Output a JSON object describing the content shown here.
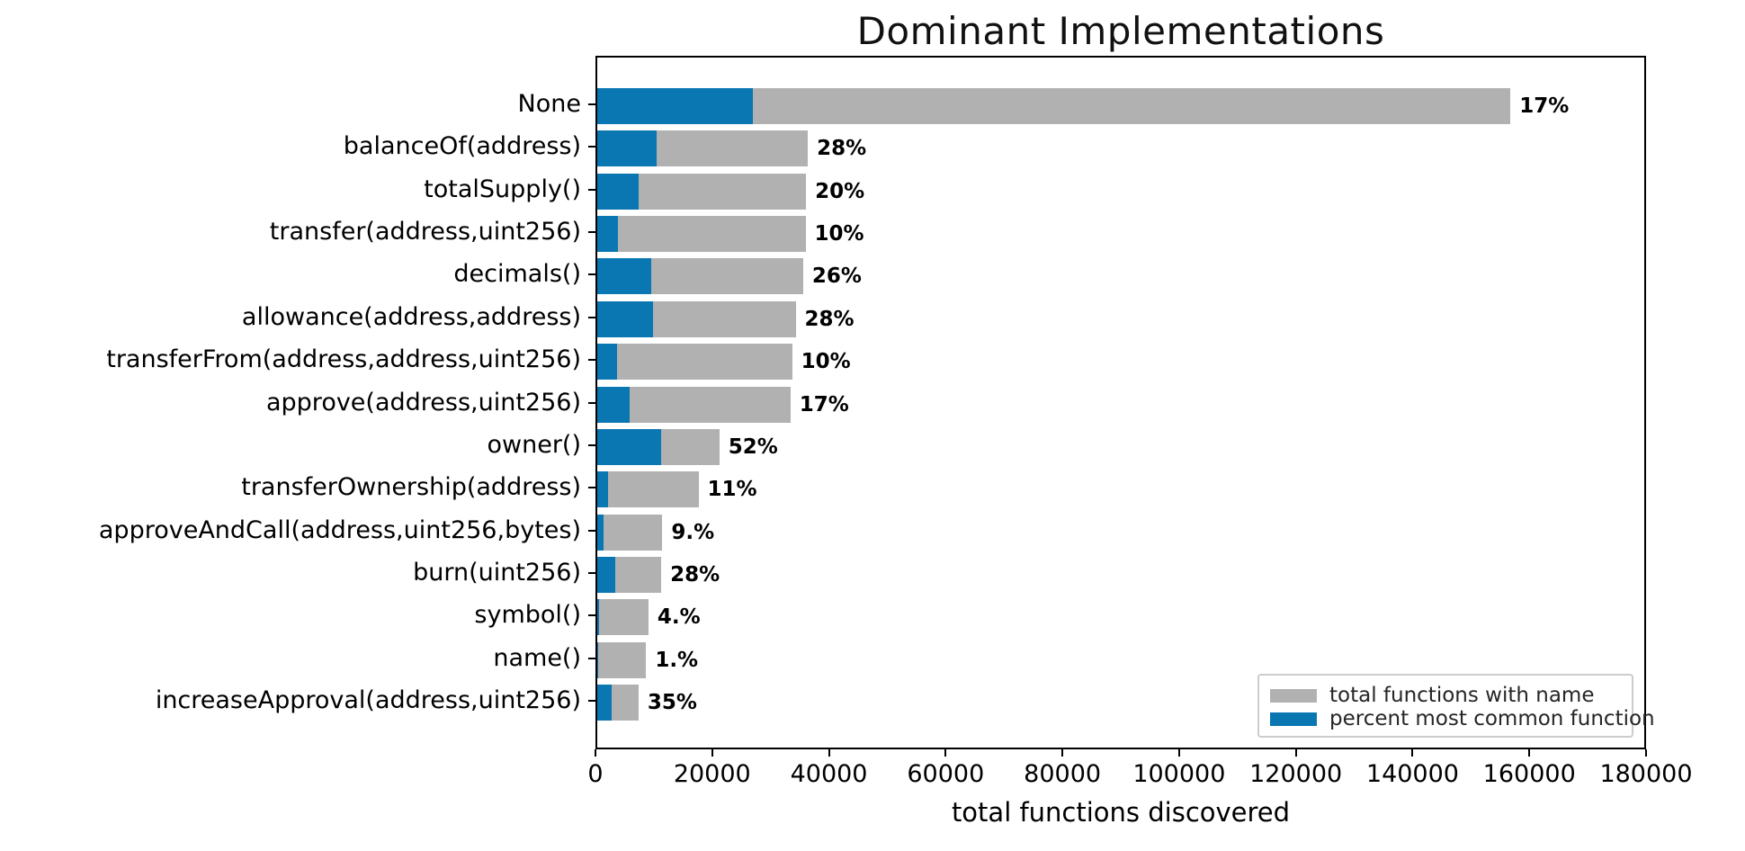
{
  "chart_data": {
    "type": "bar",
    "orientation": "horizontal",
    "title": "Dominant Implementations",
    "xlabel": "total functions discovered",
    "ylabel": "",
    "xlim": [
      0,
      180000
    ],
    "x_ticks": [
      0,
      20000,
      40000,
      60000,
      80000,
      100000,
      120000,
      140000,
      160000,
      180000
    ],
    "grid": false,
    "legend_position": "lower right",
    "categories": [
      "None",
      "balanceOf(address)",
      "totalSupply()",
      "transfer(address,uint256)",
      "decimals()",
      "allowance(address,address)",
      "transferFrom(address,address,uint256)",
      "approve(address,uint256)",
      "owner()",
      "transferOwnership(address)",
      "approveAndCall(address,uint256,bytes)",
      "burn(uint256)",
      "symbol()",
      "name()",
      "increaseApproval(address,uint256)"
    ],
    "series": [
      {
        "name": "total functions with name",
        "color": "#b1b1b1",
        "values": [
          157000,
          36200,
          35900,
          35800,
          35400,
          34100,
          33500,
          33200,
          21000,
          17400,
          11200,
          11000,
          8800,
          8400,
          7100
        ]
      },
      {
        "name": "percent most common function",
        "color": "#0a76b2",
        "values": [
          26690,
          10136,
          7180,
          3580,
          9204,
          9548,
          3350,
          5644,
          10920,
          1914,
          1008,
          3080,
          352,
          84,
          2485
        ]
      }
    ],
    "bar_label_percents": [
      17,
      28,
      20,
      10,
      26,
      28,
      10,
      17,
      52,
      11,
      9,
      28,
      4,
      1,
      35
    ],
    "bar_labels": [
      "17%",
      "28%",
      "20%",
      "10%",
      "26%",
      "28%",
      "10%",
      "17%",
      "52%",
      "11%",
      "9.%",
      "28%",
      "4.%",
      "1.%",
      "35%"
    ]
  },
  "legend": {
    "items": [
      {
        "label": "total functions with name",
        "color": "#b1b1b1"
      },
      {
        "label": "percent most common function",
        "color": "#0a76b2"
      }
    ]
  },
  "colors": {
    "total_bar": "#b1b1b1",
    "most_common_bar": "#0a76b2",
    "spine": "#000000",
    "text": "#000000"
  }
}
